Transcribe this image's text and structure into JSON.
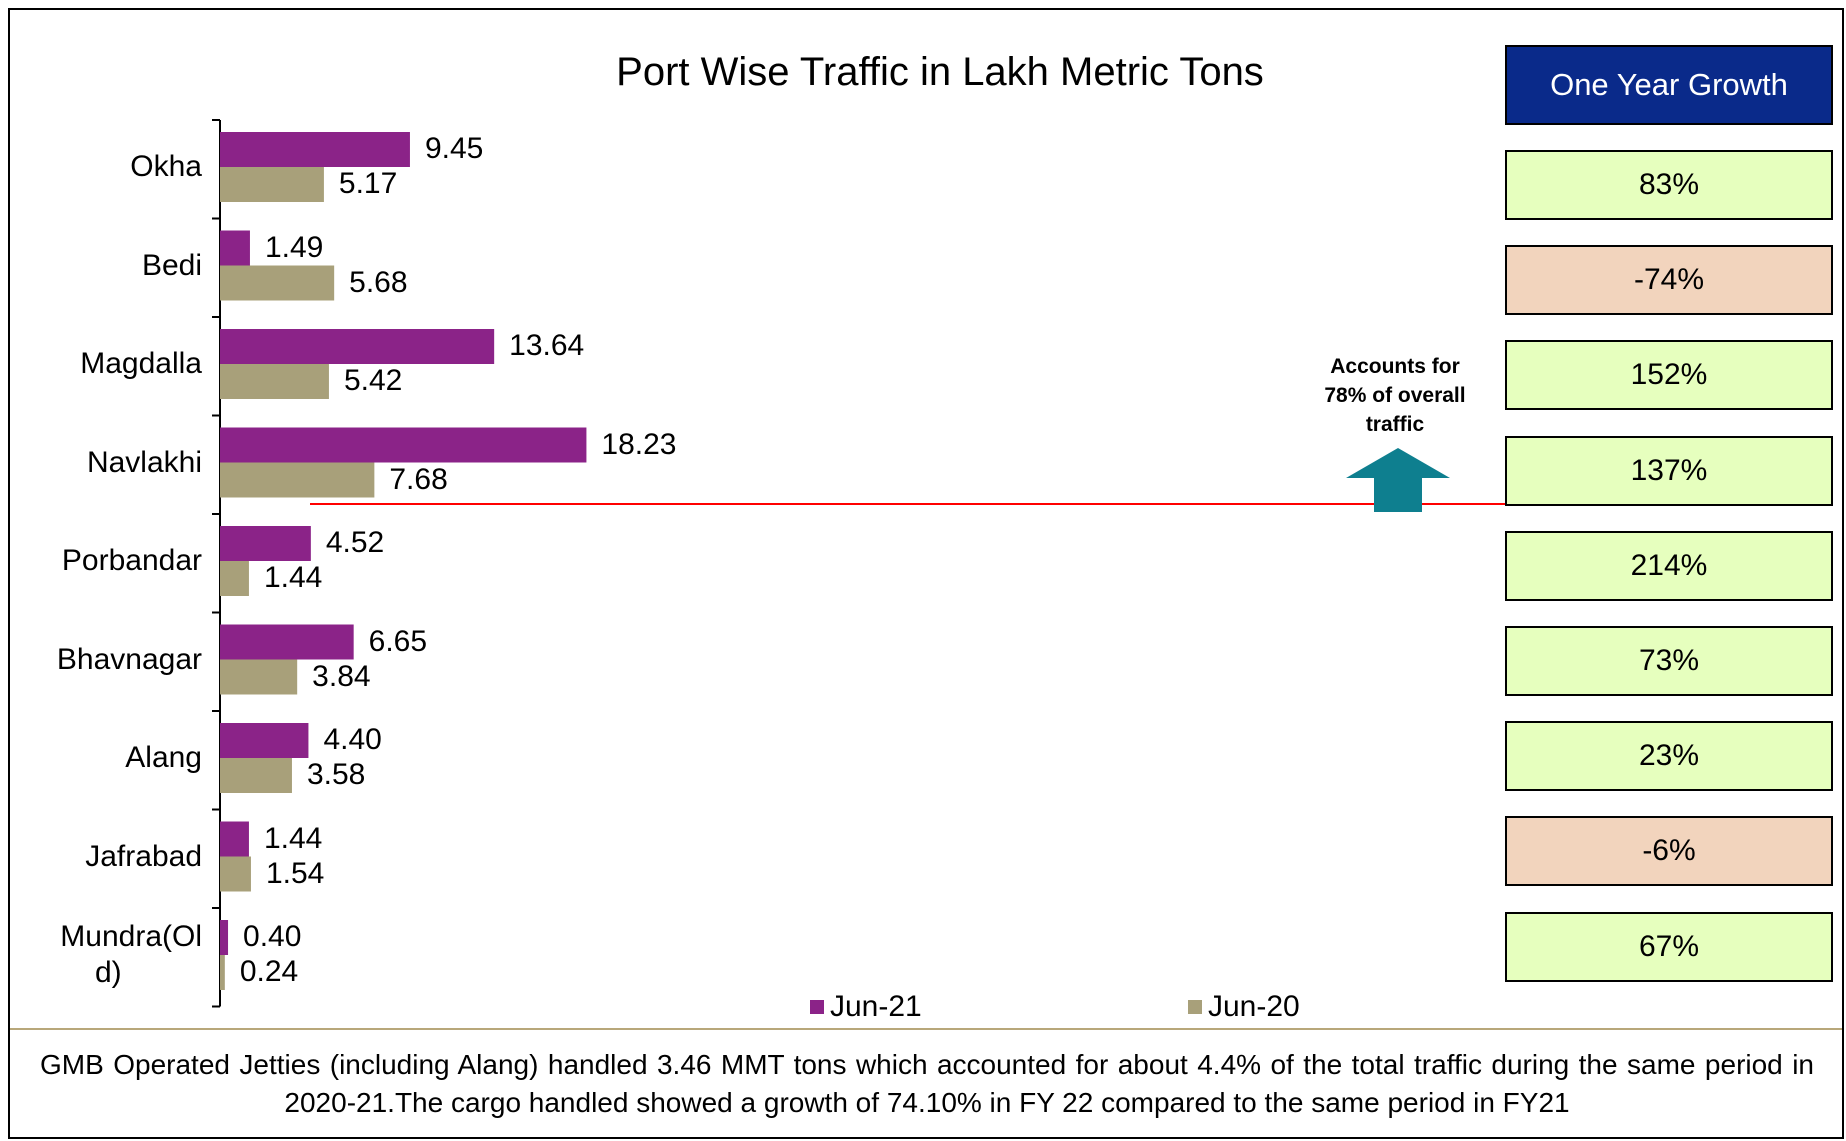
{
  "chart_data": {
    "type": "bar",
    "orientation": "horizontal",
    "title": "Port Wise Traffic in Lakh Metric Tons",
    "categories": [
      "Okha",
      "Bedi",
      "Magdalla",
      "Navlakhi",
      "Porbandar",
      "Bhavnagar",
      "Alang",
      "Jafrabad",
      "Mundra(Old)"
    ],
    "category_lines": [
      [
        "Okha"
      ],
      [
        "Bedi"
      ],
      [
        "Magdalla"
      ],
      [
        "Navlakhi"
      ],
      [
        "Porbandar"
      ],
      [
        "Bhavnagar"
      ],
      [
        "Alang"
      ],
      [
        "Jafrabad"
      ],
      [
        "Mundra(Ol",
        "d)"
      ]
    ],
    "series": [
      {
        "name": "Jun-21",
        "color": "#8b2388",
        "values": [
          9.45,
          1.49,
          13.64,
          18.23,
          4.52,
          6.65,
          4.4,
          1.44,
          0.4
        ],
        "labels": [
          "9.45",
          "1.49",
          "13.64",
          "18.23",
          "4.52",
          "6.65",
          "4.40",
          "1.44",
          "0.40"
        ]
      },
      {
        "name": "Jun-20",
        "color": "#a8a07a",
        "values": [
          5.17,
          5.68,
          5.42,
          7.68,
          1.44,
          3.84,
          3.58,
          1.54,
          0.24
        ],
        "labels": [
          "5.17",
          "5.68",
          "5.42",
          "7.68",
          "1.44",
          "3.84",
          "3.58",
          "1.54",
          "0.24"
        ]
      }
    ],
    "xlim": [
      0,
      20
    ],
    "xlabel": "",
    "ylabel": "",
    "legend_position": "bottom",
    "grid": false
  },
  "growth_panel": {
    "header": "One Year Growth",
    "header_color": "#0a2a8a",
    "positive_color": "#e6ffbe",
    "negative_color": "#f2d4bd",
    "values": [
      "83%",
      "-74%",
      "152%",
      "137%",
      "214%",
      "73%",
      "23%",
      "-6%",
      "67%"
    ],
    "negative": [
      false,
      true,
      false,
      false,
      false,
      false,
      false,
      true,
      false
    ]
  },
  "callout": {
    "lines": [
      "Accounts for",
      "78% of overall",
      "traffic"
    ],
    "arrow_icon": "up-arrow-icon",
    "arrow_color": "#0e7f8f",
    "divider_color": "#ff0000"
  },
  "footer": {
    "text": "GMB Operated Jetties (including Alang) handled 3.46 MMT tons which accounted for about 4.4% of the total traffic during the same period in 2020-21.The cargo handled showed a growth of 74.10% in FY 22 compared to the same period in FY21"
  }
}
